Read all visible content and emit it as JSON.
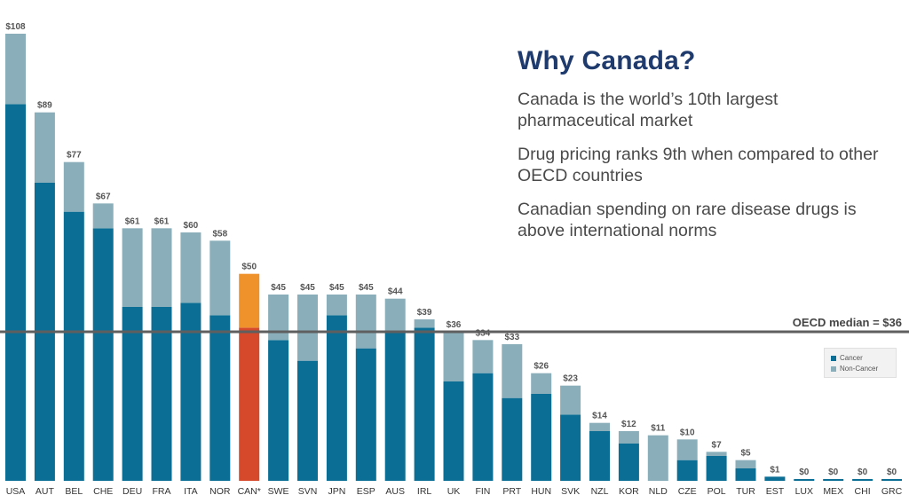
{
  "panel": {
    "title": "Why Canada?",
    "bullets": [
      "Canada is the world’s 10th largest pharmaceutical market",
      "Drug pricing ranks 9th when compared to other OECD countries",
      "Canadian spending on rare disease drugs is above international norms"
    ]
  },
  "median": {
    "label": "OECD median = $36",
    "value": 36
  },
  "colors": {
    "cancer": "#0b6e94",
    "non_cancer": "#8aafbb",
    "can_cancer": "#d6492a",
    "can_non_cancer": "#f0922c",
    "median_line": "#5f5f5f",
    "value_label": "#555555"
  },
  "chart_data": {
    "type": "bar",
    "stacked": true,
    "categories": [
      "USA",
      "AUT",
      "BEL",
      "CHE",
      "DEU",
      "FRA",
      "ITA",
      "NOR",
      "CAN*",
      "SWE",
      "SVN",
      "JPN",
      "ESP",
      "AUS",
      "IRL",
      "UK",
      "FIN",
      "PRT",
      "HUN",
      "SVK",
      "NZL",
      "KOR",
      "NLD",
      "CZE",
      "POL",
      "TUR",
      "EST",
      "LUX",
      "MEX",
      "CHI",
      "GRC"
    ],
    "series": [
      {
        "name": "Cancer",
        "values": [
          91,
          72,
          65,
          61,
          42,
          42,
          43,
          40,
          37,
          34,
          29,
          40,
          32,
          36,
          37,
          24,
          26,
          20,
          21,
          16,
          12,
          9,
          0,
          5,
          6,
          3,
          1,
          0,
          0,
          0,
          0
        ]
      },
      {
        "name": "Non-Cancer",
        "values": [
          17,
          17,
          12,
          6,
          19,
          19,
          17,
          18,
          13,
          11,
          16,
          5,
          13,
          8,
          2,
          12,
          8,
          13,
          5,
          7,
          2,
          3,
          11,
          5,
          1,
          2,
          0,
          0,
          0,
          0,
          0
        ]
      }
    ],
    "totals": [
      "$108",
      "$89",
      "$77",
      "$67",
      "$61",
      "$61",
      "$60",
      "$58",
      "$50",
      "$45",
      "$45",
      "$45",
      "$45",
      "$44",
      "$39",
      "$36",
      "$34",
      "$33",
      "$26",
      "$23",
      "$14",
      "$12",
      "$11",
      "$10",
      "$7",
      "$5",
      "$1",
      "$0",
      "$0",
      "$0",
      "$0"
    ],
    "highlight": "CAN*",
    "ylim": [
      0,
      108
    ],
    "legend": {
      "position": "right",
      "items": [
        "Cancer",
        "Non-Cancer"
      ]
    },
    "grid": false
  }
}
